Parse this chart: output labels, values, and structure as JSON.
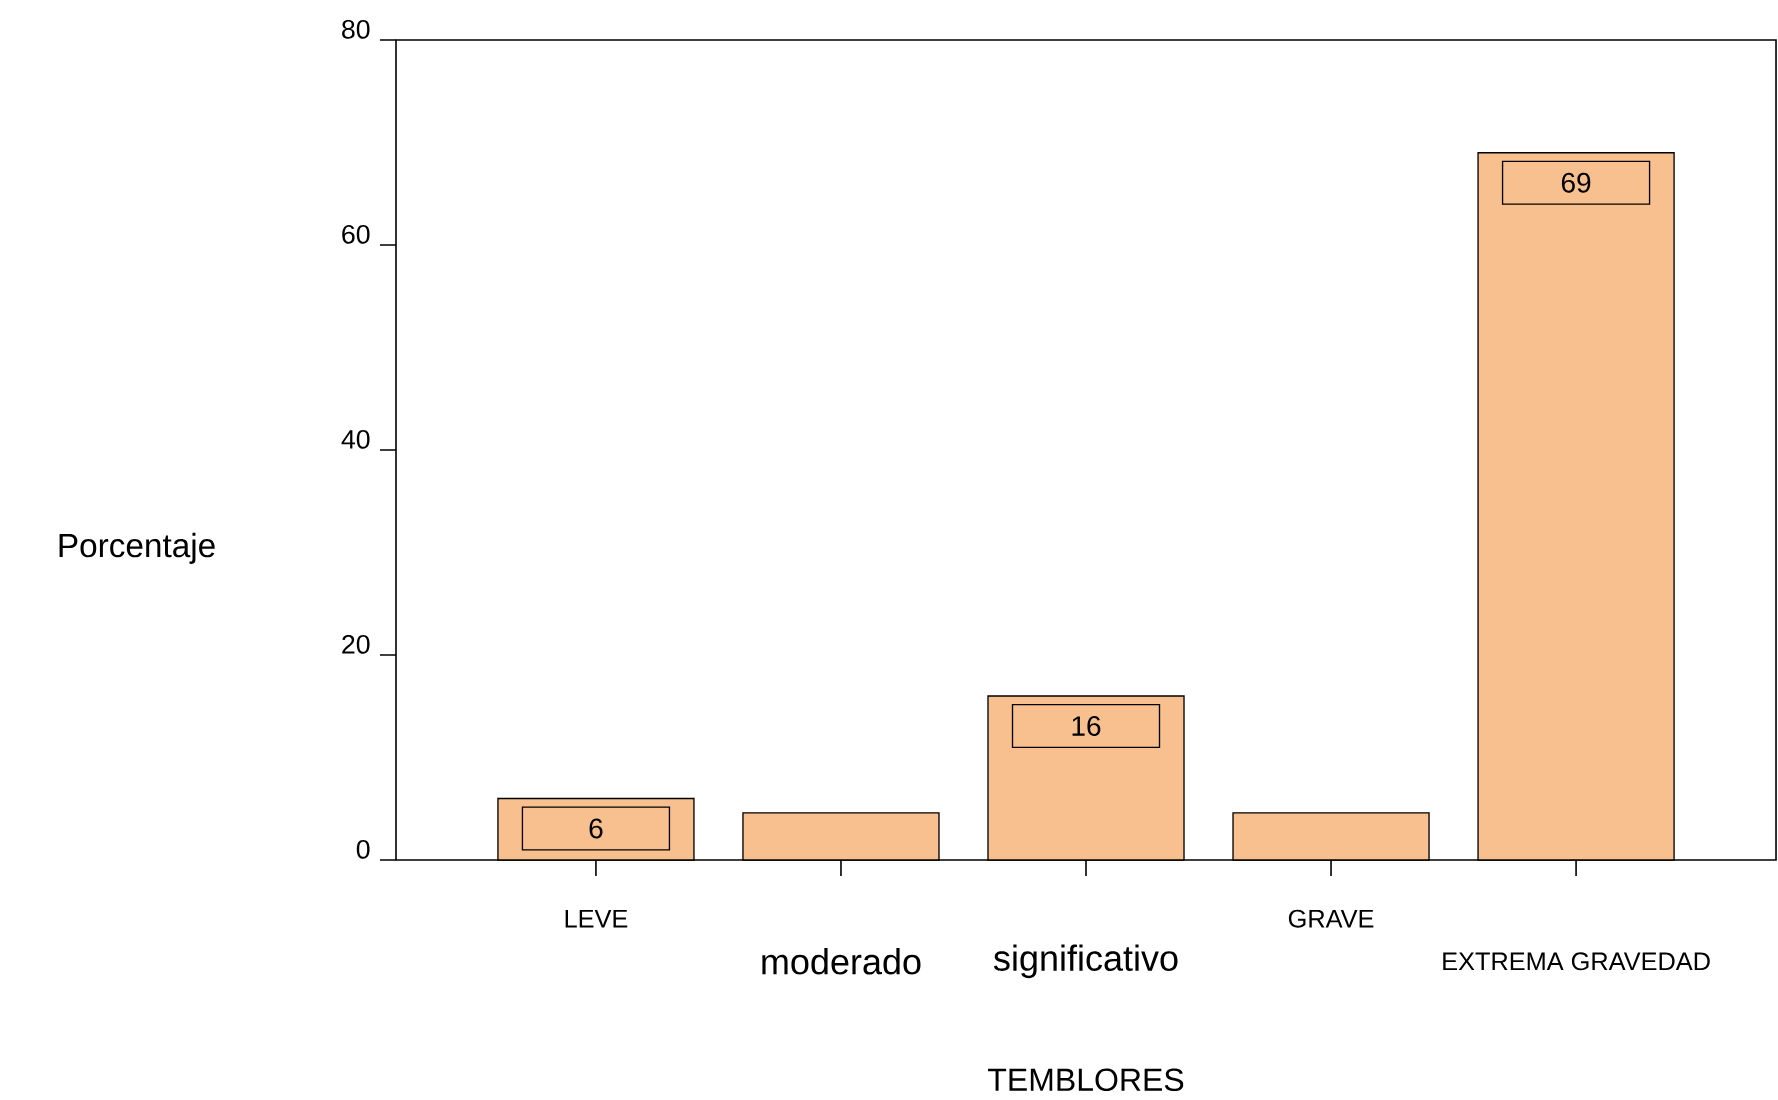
{
  "chart_data": {
    "type": "bar",
    "xlabel": "TEMBLORES",
    "ylabel": "Porcentaje",
    "categories": [
      "LEVE",
      "moderado",
      "significativo",
      "GRAVE",
      "EXTREMA GRAVEDAD"
    ],
    "values": [
      6,
      4.6,
      16,
      4.6,
      69
    ],
    "value_labels": [
      "6",
      null,
      "16",
      null,
      "69"
    ],
    "color": "#f8c08f",
    "ylim": [
      0,
      80
    ],
    "yticks": [
      0,
      20,
      40,
      60,
      80
    ],
    "grid": false
  }
}
